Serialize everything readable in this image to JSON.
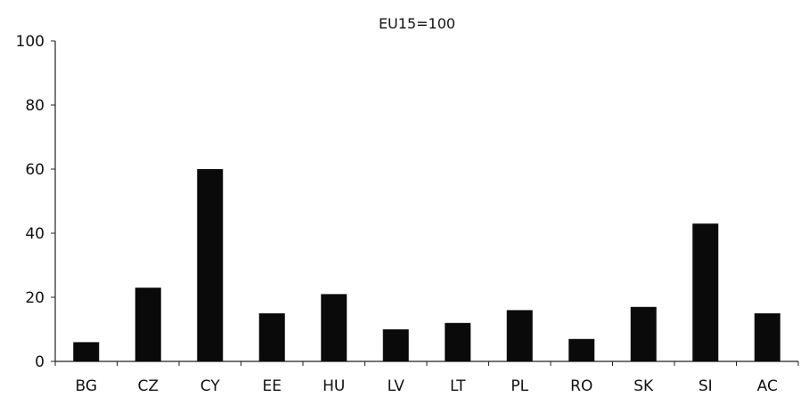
{
  "chart_data": {
    "type": "bar",
    "title": "EU15=100",
    "xlabel": "",
    "ylabel": "",
    "categories": [
      "BG",
      "CZ",
      "CY",
      "EE",
      "HU",
      "LV",
      "LT",
      "PL",
      "RO",
      "SK",
      "SI",
      "AC"
    ],
    "values": [
      6,
      23,
      60,
      15,
      21,
      10,
      12,
      16,
      7,
      17,
      43,
      15
    ],
    "ylim": [
      0,
      100
    ],
    "yticks": [
      0,
      20,
      40,
      60,
      80,
      100
    ],
    "grid": false,
    "legend": "none",
    "bar_color": "#0a0a0a"
  }
}
